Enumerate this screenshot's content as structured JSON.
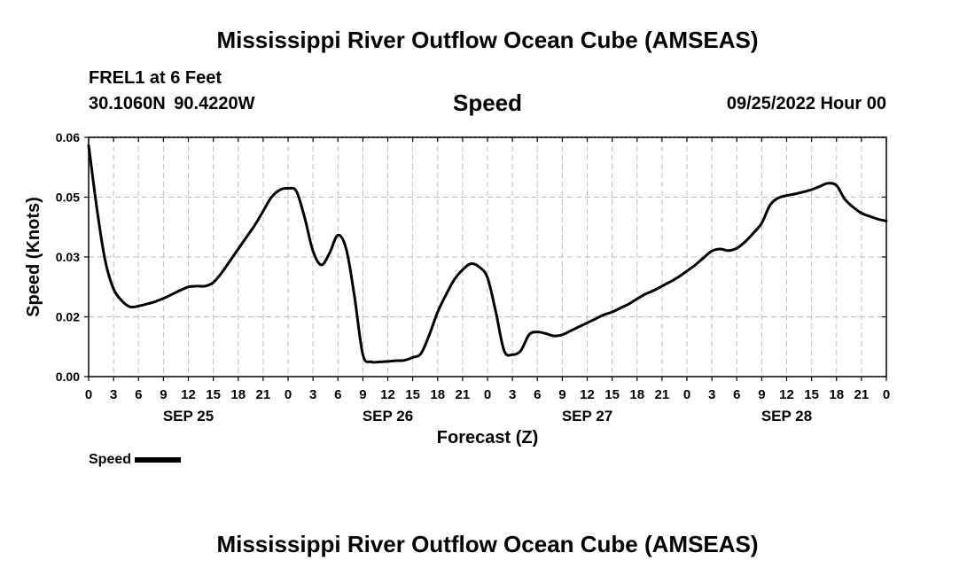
{
  "header": {
    "title": "Mississippi River Outflow Ocean Cube (AMSEAS)",
    "station": "FREL1 at 6 Feet",
    "coords": "30.1060N  90.4220W",
    "panel_title": "Speed",
    "datetime": "09/25/2022 Hour 00"
  },
  "footer": {
    "title": "Mississippi River Outflow Ocean Cube (AMSEAS)"
  },
  "legend": {
    "label": "Speed"
  },
  "chart_data": {
    "type": "line",
    "xlabel": "Forecast (Z)",
    "ylabel": "Speed (Knots)",
    "xlim": [
      0,
      96
    ],
    "ylim": [
      0,
      0.06
    ],
    "y_ticks": [
      "0.00",
      "0.02",
      "0.03",
      "0.05",
      "0.06"
    ],
    "x_tick_labels": [
      "0",
      "3",
      "6",
      "9",
      "12",
      "15",
      "18",
      "21",
      "0",
      "3",
      "6",
      "9",
      "12",
      "15",
      "18",
      "21",
      "0",
      "3",
      "6",
      "9",
      "12",
      "15",
      "18",
      "21",
      "0",
      "3",
      "6",
      "9",
      "12",
      "15",
      "18",
      "21",
      "0"
    ],
    "date_labels": [
      {
        "label": "SEP 25",
        "hour": 12
      },
      {
        "label": "SEP 26",
        "hour": 36
      },
      {
        "label": "SEP 27",
        "hour": 60
      },
      {
        "label": "SEP 28",
        "hour": 84
      }
    ],
    "grid": true,
    "legend_position": "bottom-left",
    "series": [
      {
        "name": "Speed",
        "color": "#000000",
        "x": [
          0,
          1,
          2,
          3,
          4,
          5,
          6,
          7,
          8,
          9,
          10,
          11,
          12,
          13,
          14,
          15,
          16,
          17,
          18,
          19,
          20,
          21,
          22,
          23,
          24,
          25,
          26,
          27,
          28,
          29,
          30,
          31,
          32,
          33,
          34,
          35,
          36,
          37,
          38,
          39,
          40,
          41,
          42,
          43,
          44,
          45,
          46,
          47,
          48,
          49,
          50,
          51,
          52,
          53,
          54,
          55,
          56,
          57,
          58,
          59,
          60,
          61,
          62,
          63,
          64,
          65,
          66,
          67,
          68,
          69,
          70,
          71,
          72,
          73,
          74,
          75,
          76,
          77,
          78,
          79,
          80,
          81,
          82,
          83,
          84,
          85,
          86,
          87,
          88,
          89,
          90,
          91,
          92,
          93,
          94,
          95,
          96
        ],
        "y": [
          0.058,
          0.042,
          0.029,
          0.022,
          0.019,
          0.0175,
          0.0177,
          0.0182,
          0.0188,
          0.0196,
          0.0206,
          0.0216,
          0.0225,
          0.0227,
          0.0227,
          0.0236,
          0.026,
          0.029,
          0.032,
          0.035,
          0.038,
          0.0415,
          0.045,
          0.0468,
          0.0472,
          0.0465,
          0.0398,
          0.0315,
          0.028,
          0.031,
          0.0355,
          0.032,
          0.02,
          0.0055,
          0.0037,
          0.0037,
          0.0038,
          0.004,
          0.0041,
          0.0048,
          0.0058,
          0.0105,
          0.0162,
          0.0205,
          0.0243,
          0.0268,
          0.0283,
          0.0275,
          0.0248,
          0.0162,
          0.0065,
          0.0055,
          0.0065,
          0.0105,
          0.0112,
          0.0108,
          0.0102,
          0.0105,
          0.0115,
          0.0125,
          0.0135,
          0.0145,
          0.0155,
          0.0162,
          0.0172,
          0.0182,
          0.0195,
          0.0207,
          0.0216,
          0.0227,
          0.0238,
          0.025,
          0.0265,
          0.028,
          0.0298,
          0.0315,
          0.032,
          0.0316,
          0.0322,
          0.0338,
          0.036,
          0.0385,
          0.043,
          0.0448,
          0.0454,
          0.0458,
          0.0463,
          0.0469,
          0.0477,
          0.0485,
          0.0479,
          0.0445,
          0.0425,
          0.041,
          0.0402,
          0.0395,
          0.039
        ]
      }
    ]
  }
}
